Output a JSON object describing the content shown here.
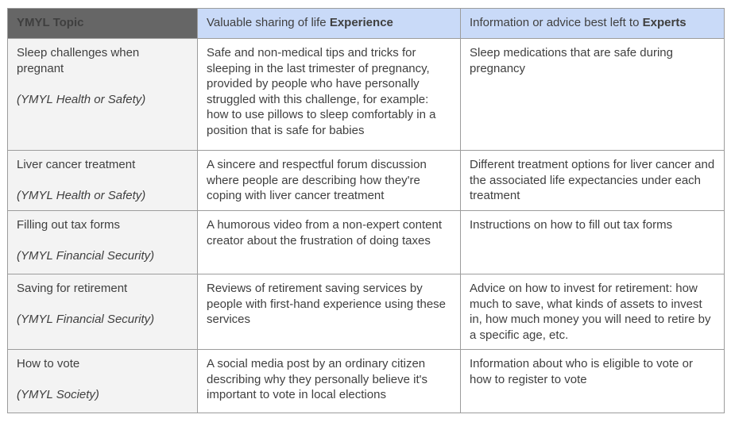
{
  "colors": {
    "header_topic_bg": "#666666",
    "header_topic_text": "#ffffff",
    "header_accent_bg": "#c9daf8",
    "topic_column_bg": "#f3f3f3",
    "body_text": "#3f3f3f",
    "border": "#9c9c9c",
    "page_bg": "#ffffff"
  },
  "table": {
    "headers": {
      "topic": "YMYL Topic",
      "experience_prefix": "Valuable sharing of life ",
      "experience_bold": "Experience",
      "experts_prefix": "Information or advice best left to ",
      "experts_bold": "Experts"
    },
    "rows": [
      {
        "topic": "Sleep challenges when pregnant",
        "category": "(YMYL Health or Safety)",
        "experience": "Safe and non-medical tips and tricks for sleeping in the last trimester of pregnancy, provided by people who have personally struggled with this challenge, for example: how to use pillows to sleep comfortably in a position that is safe for babies",
        "experts": "Sleep medications that are safe during pregnancy"
      },
      {
        "topic": "Liver cancer treatment",
        "category": "(YMYL Health or Safety)",
        "experience": "A sincere and respectful forum discussion where people are describing how they're coping with liver cancer treatment",
        "experts": "Different treatment options for liver cancer and the associated life expectancies under each treatment"
      },
      {
        "topic": "Filling out tax forms",
        "category": "(YMYL Financial Security)",
        "experience": "A humorous video from a non-expert content creator about the frustration of doing taxes",
        "experts": "Instructions on how to fill out tax forms"
      },
      {
        "topic": "Saving for retirement",
        "category": "(YMYL Financial Security)",
        "experience": "Reviews of retirement saving services by people with first-hand experience using these services",
        "experts": "Advice on how to invest for retirement: how much to save, what kinds of assets to invest in, how much money you will need to retire by a specific age, etc."
      },
      {
        "topic": "How to vote",
        "category": "(YMYL Society)",
        "experience": "A social media post by an ordinary citizen describing why they personally believe it's important to vote in local elections",
        "experts": "Information about who is eligible to vote or how to register to vote"
      }
    ]
  }
}
